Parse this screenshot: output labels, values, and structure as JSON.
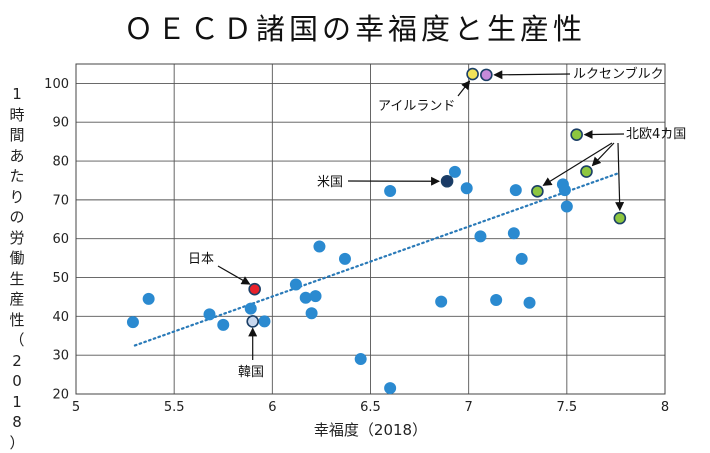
{
  "chart_data": {
    "type": "scatter",
    "title": "ＯＥＣＤ諸国の幸福度と生産性",
    "xlabel": "幸福度（2018）",
    "ylabel": "1時間あたりの労働生産性（2018）",
    "xlim": [
      5,
      8
    ],
    "ylim": [
      20,
      105
    ],
    "xticks": [
      "5",
      "5.5",
      "6",
      "6.5",
      "7",
      "7.5",
      "8"
    ],
    "yticks": [
      "20",
      "30",
      "40",
      "50",
      "60",
      "70",
      "80",
      "90",
      "100"
    ],
    "grid": true,
    "trendline": {
      "style": "dotted",
      "color": "#2a7ab8",
      "start": [
        5.3,
        32.5
      ],
      "end": [
        7.77,
        77
      ]
    },
    "colors": {
      "point": "#2b8ad0",
      "japan": "#e8212b",
      "korea": "#c9d8ee",
      "usa": "#1a3a66",
      "ireland": "#f2e35a",
      "luxembourg": "#c58ad9",
      "nordic": "#8dc63f",
      "outline": "#1b3f66"
    },
    "points": [
      {
        "x": 5.29,
        "y": 38.5
      },
      {
        "x": 5.37,
        "y": 44.5
      },
      {
        "x": 5.68,
        "y": 40.5
      },
      {
        "x": 5.75,
        "y": 37.8
      },
      {
        "x": 5.89,
        "y": 42
      },
      {
        "x": 5.96,
        "y": 38.7
      },
      {
        "x": 6.12,
        "y": 48.2
      },
      {
        "x": 6.17,
        "y": 44.8
      },
      {
        "x": 6.2,
        "y": 40.8
      },
      {
        "x": 6.22,
        "y": 45.2
      },
      {
        "x": 6.24,
        "y": 58
      },
      {
        "x": 6.37,
        "y": 54.8
      },
      {
        "x": 6.45,
        "y": 29
      },
      {
        "x": 6.6,
        "y": 72.3
      },
      {
        "x": 6.6,
        "y": 21.5
      },
      {
        "x": 6.86,
        "y": 43.8
      },
      {
        "x": 6.93,
        "y": 77.2
      },
      {
        "x": 6.99,
        "y": 73
      },
      {
        "x": 7.06,
        "y": 60.6
      },
      {
        "x": 7.14,
        "y": 44.2
      },
      {
        "x": 7.23,
        "y": 61.4
      },
      {
        "x": 7.24,
        "y": 72.5
      },
      {
        "x": 7.27,
        "y": 54.8
      },
      {
        "x": 7.31,
        "y": 43.5
      },
      {
        "x": 7.48,
        "y": 74
      },
      {
        "x": 7.49,
        "y": 72.5
      },
      {
        "x": 7.5,
        "y": 68.3
      }
    ],
    "highlighted": [
      {
        "name": "日本",
        "x": 5.91,
        "y": 47,
        "color": "japan"
      },
      {
        "name": "韓国",
        "x": 5.9,
        "y": 38.7,
        "color": "korea"
      },
      {
        "name": "米国",
        "x": 6.89,
        "y": 74.8,
        "color": "usa"
      },
      {
        "name": "アイルランド",
        "x": 7.02,
        "y": 102.4,
        "color": "ireland"
      },
      {
        "name": "ルクセンブルク",
        "x": 7.09,
        "y": 102.2,
        "color": "luxembourg"
      },
      {
        "name": "北欧4カ国",
        "x": 7.35,
        "y": 72.2,
        "color": "nordic"
      },
      {
        "name": "北欧4カ国",
        "x": 7.55,
        "y": 86.8,
        "color": "nordic"
      },
      {
        "name": "北欧4カ国",
        "x": 7.6,
        "y": 77.3,
        "color": "nordic"
      },
      {
        "name": "北欧4カ国",
        "x": 7.77,
        "y": 65.3,
        "color": "nordic"
      }
    ],
    "annotations": {
      "japan": "日本",
      "korea": "韓国",
      "usa": "米国",
      "ireland": "アイルランド",
      "luxembourg": "ルクセンブルク",
      "nordic": "北欧4カ国"
    }
  }
}
